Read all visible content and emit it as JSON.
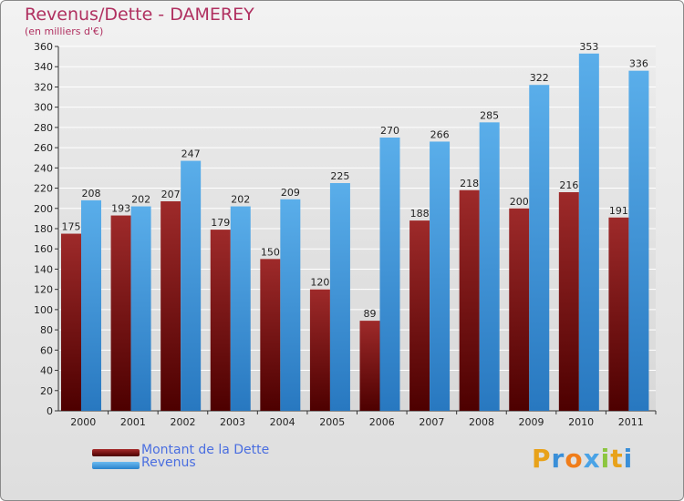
{
  "chart_data": {
    "type": "bar",
    "title": "Revenus/Dette - DAMEREY",
    "subtitle": "(en milliers d'€)",
    "categories": [
      "2000",
      "2001",
      "2002",
      "2003",
      "2004",
      "2005",
      "2006",
      "2007",
      "2008",
      "2009",
      "2010",
      "2011"
    ],
    "series": [
      {
        "name": "Montant de la Dette",
        "values": [
          175,
          193,
          207,
          179,
          150,
          120,
          89,
          188,
          218,
          200,
          216,
          191
        ],
        "color": "#8b1a1a"
      },
      {
        "name": "Revenus",
        "values": [
          208,
          202,
          247,
          202,
          209,
          225,
          270,
          266,
          285,
          322,
          353,
          336
        ],
        "color": "#4aa3e6"
      }
    ],
    "ylim": [
      0,
      360
    ],
    "yticks": [
      0,
      20,
      40,
      60,
      80,
      100,
      120,
      140,
      160,
      180,
      200,
      220,
      240,
      260,
      280,
      300,
      320,
      340,
      360
    ],
    "grid": true,
    "legend_position": "bottom-left"
  },
  "brand": {
    "letters": [
      "P",
      "r",
      "o",
      "x",
      "i",
      "t",
      "i"
    ],
    "colors": [
      "#e8a21a",
      "#3a8fd8",
      "#f07d1a",
      "#4aa3e6",
      "#8cc63f",
      "#e8a21a",
      "#3a8fd8"
    ]
  }
}
